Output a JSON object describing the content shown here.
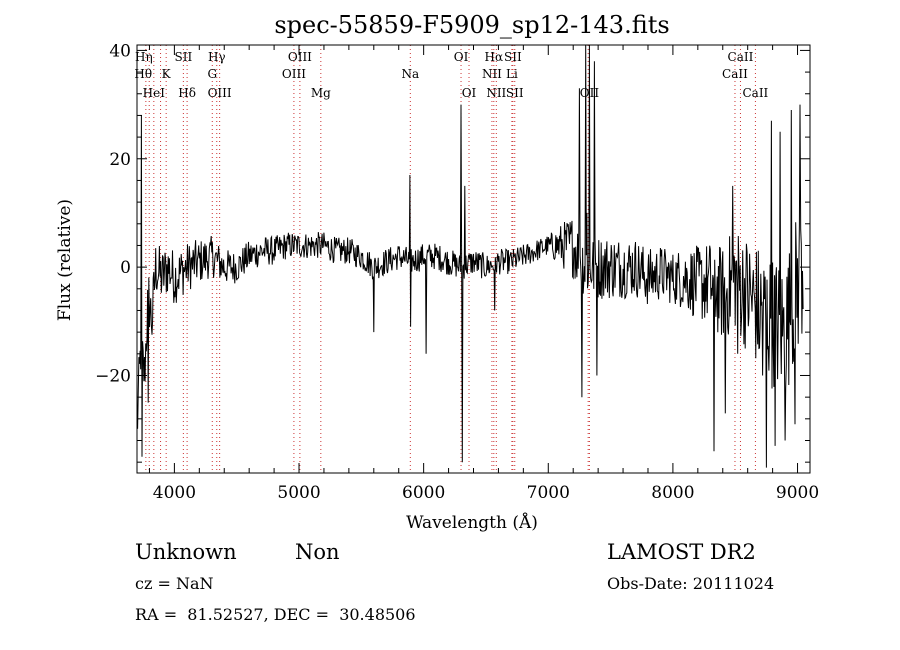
{
  "chart_data": {
    "type": "line",
    "title": "spec-55859-F5909_sp12-143.fits",
    "xlabel": "Wavelength (Å)",
    "ylabel": "Flux (relative)",
    "xlim": [
      3700,
      9100
    ],
    "ylim": [
      -38,
      41
    ],
    "xticks": [
      4000,
      5000,
      6000,
      7000,
      8000,
      9000
    ],
    "yticks": [
      -20,
      0,
      20,
      40
    ],
    "grid": false,
    "line_color": "#000000",
    "marker_color": "#cc3333",
    "anchors": [
      [
        3700,
        -30
      ],
      [
        3730,
        -15
      ],
      [
        3760,
        -20
      ],
      [
        3790,
        -5
      ],
      [
        3820,
        -10
      ],
      [
        3850,
        0
      ],
      [
        3900,
        -2
      ],
      [
        3950,
        0
      ],
      [
        4000,
        -2
      ],
      [
        4100,
        0
      ],
      [
        4200,
        1
      ],
      [
        4300,
        2
      ],
      [
        4400,
        0
      ],
      [
        4500,
        0
      ],
      [
        4600,
        2
      ],
      [
        4700,
        3
      ],
      [
        4800,
        3
      ],
      [
        4900,
        4
      ],
      [
        5000,
        4
      ],
      [
        5100,
        4
      ],
      [
        5200,
        4
      ],
      [
        5300,
        3
      ],
      [
        5400,
        3
      ],
      [
        5500,
        2
      ],
      [
        5600,
        0
      ],
      [
        5700,
        1
      ],
      [
        5800,
        2
      ],
      [
        5900,
        1
      ],
      [
        6000,
        2
      ],
      [
        6100,
        2
      ],
      [
        6200,
        1
      ],
      [
        6300,
        0
      ],
      [
        6400,
        1
      ],
      [
        6500,
        0
      ],
      [
        6600,
        1
      ],
      [
        6700,
        1
      ],
      [
        6800,
        2
      ],
      [
        6900,
        3
      ],
      [
        7000,
        4
      ],
      [
        7100,
        4
      ],
      [
        7200,
        4
      ],
      [
        7300,
        0
      ],
      [
        7400,
        0
      ],
      [
        7500,
        0
      ],
      [
        7600,
        0
      ],
      [
        7700,
        0
      ],
      [
        7800,
        -2
      ],
      [
        7900,
        -1
      ],
      [
        8000,
        -2
      ],
      [
        8100,
        -2
      ],
      [
        8200,
        -3
      ],
      [
        8300,
        -3
      ],
      [
        8400,
        -5
      ],
      [
        8500,
        -2
      ],
      [
        8600,
        -5
      ],
      [
        8700,
        -8
      ],
      [
        8800,
        -10
      ],
      [
        8900,
        -12
      ],
      [
        9000,
        -3
      ],
      [
        9040,
        0
      ]
    ],
    "noise": [
      [
        3700,
        6
      ],
      [
        4000,
        5
      ],
      [
        4500,
        3
      ],
      [
        5000,
        2.5
      ],
      [
        5500,
        2.5
      ],
      [
        6000,
        2.5
      ],
      [
        6500,
        2.5
      ],
      [
        7000,
        2
      ],
      [
        7200,
        6
      ],
      [
        7500,
        6
      ],
      [
        8000,
        5
      ],
      [
        8300,
        8
      ],
      [
        8700,
        12
      ],
      [
        9040,
        14
      ]
    ],
    "features": [
      [
        3735,
        28
      ],
      [
        3740,
        -35
      ],
      [
        3790,
        -25
      ],
      [
        5600,
        -12
      ],
      [
        5890,
        17
      ],
      [
        5895,
        -11
      ],
      [
        6020,
        -16
      ],
      [
        6300,
        30
      ],
      [
        6310,
        -36
      ],
      [
        6330,
        15
      ],
      [
        6570,
        -8
      ],
      [
        7250,
        33
      ],
      [
        7270,
        -24
      ],
      [
        7300,
        41
      ],
      [
        7310,
        10
      ],
      [
        7330,
        41
      ],
      [
        7370,
        38
      ],
      [
        7390,
        -20
      ],
      [
        8330,
        -34
      ],
      [
        8420,
        -27
      ],
      [
        8480,
        15
      ],
      [
        8520,
        -16
      ],
      [
        8690,
        -15
      ],
      [
        8720,
        -20
      ],
      [
        8750,
        -37
      ],
      [
        8790,
        27
      ],
      [
        8820,
        -33
      ],
      [
        8860,
        25
      ],
      [
        8900,
        -32
      ],
      [
        8950,
        29
      ],
      [
        8980,
        -29
      ],
      [
        9020,
        30
      ],
      [
        9050,
        -10
      ]
    ],
    "lines": [
      {
        "x": 3771,
        "label": "Hη",
        "row": 0,
        "dx": -2
      },
      {
        "x": 3798,
        "label": "Hθ",
        "row": 1,
        "dx": -6
      },
      {
        "x": 3835,
        "label": "HeI",
        "row": 2,
        "dx": 0
      },
      {
        "x": 3889,
        "label": "",
        "row": -1,
        "dx": 0
      },
      {
        "x": 3934,
        "label": "K",
        "row": 1,
        "dx": 0
      },
      {
        "x": 4072,
        "label": "SII",
        "row": 0,
        "dx": 0
      },
      {
        "x": 4102,
        "label": "Hδ",
        "row": 2,
        "dx": 0
      },
      {
        "x": 4304,
        "label": "G",
        "row": 1,
        "dx": 0
      },
      {
        "x": 4340,
        "label": "Hγ",
        "row": 0,
        "dx": 0
      },
      {
        "x": 4363,
        "label": "OIII",
        "row": 2,
        "dx": 0
      },
      {
        "x": 4959,
        "label": "OIII",
        "row": 1,
        "dx": 0
      },
      {
        "x": 5007,
        "label": "OIII",
        "row": 0,
        "dx": 0
      },
      {
        "x": 5175,
        "label": "Mg",
        "row": 2,
        "dx": 0
      },
      {
        "x": 5893,
        "label": "Na",
        "row": 1,
        "dx": 0
      },
      {
        "x": 6300,
        "label": "OI",
        "row": 0,
        "dx": 0
      },
      {
        "x": 6364,
        "label": "OI",
        "row": 2,
        "dx": 0
      },
      {
        "x": 6548,
        "label": "NII",
        "row": 1,
        "dx": 0
      },
      {
        "x": 6563,
        "label": "Hα",
        "row": 0,
        "dx": 0
      },
      {
        "x": 6583,
        "label": "NII",
        "row": 2,
        "dx": 0
      },
      {
        "x": 6708,
        "label": "Li",
        "row": 1,
        "dx": 0
      },
      {
        "x": 6716,
        "label": "SII",
        "row": 0,
        "dx": 0
      },
      {
        "x": 6731,
        "label": "SII",
        "row": 2,
        "dx": 0
      },
      {
        "x": 7320,
        "label": "",
        "row": -1,
        "dx": 0
      },
      {
        "x": 7330,
        "label": "OII",
        "row": 2,
        "dx": 0
      },
      {
        "x": 8498,
        "label": "CaII",
        "row": 1,
        "dx": 0
      },
      {
        "x": 8542,
        "label": "CaII",
        "row": 0,
        "dx": 0
      },
      {
        "x": 8662,
        "label": "CaII",
        "row": 2,
        "dx": 0
      }
    ]
  },
  "footer": {
    "class_label": "Unknown",
    "subclass_label": "Non",
    "survey": "LAMOST DR2",
    "cz": "cz = NaN",
    "obs_date": "Obs-Date: 20111024",
    "coords": "RA =  81.52527, DEC =  30.48506"
  }
}
